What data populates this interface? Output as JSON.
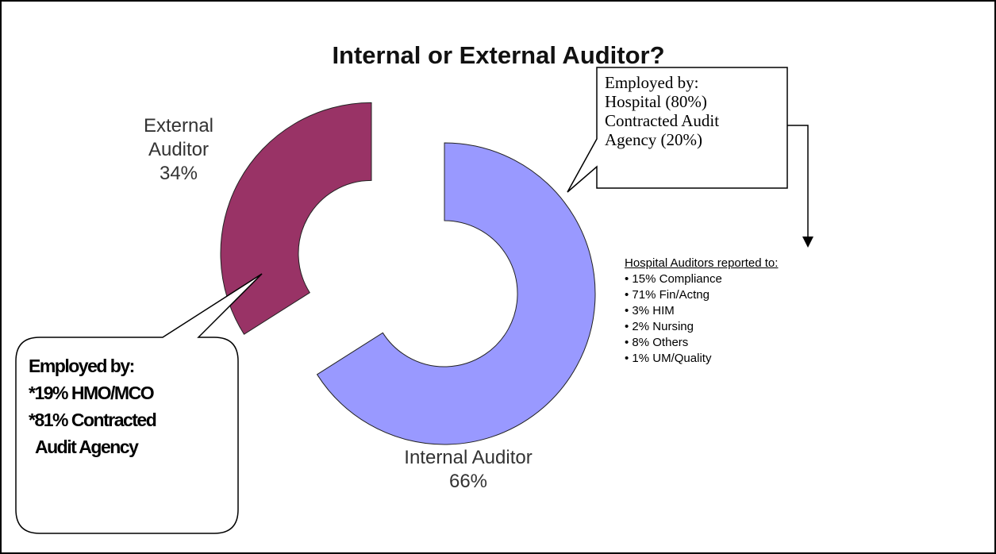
{
  "chart_data": {
    "type": "pie",
    "donut": true,
    "title": "Internal or External Auditor?",
    "categories": [
      "Internal Auditor",
      "External Auditor"
    ],
    "values": [
      66,
      34
    ],
    "value_labels": [
      "66%",
      "34%"
    ],
    "colors": [
      "#9999ff",
      "#993366"
    ],
    "annotations": [
      {
        "lines": [
          "Employed by:",
          "Hospital (80%)",
          "Contracted Audit",
          "Agency (20%)"
        ]
      },
      {
        "lines": [
          "Employed by:",
          "*19% HMO/MCO",
          "*81% Contracted",
          "Audit Agency"
        ]
      },
      {
        "heading": "Hospital Auditors reported to:",
        "items": [
          "15% Compliance",
          "71% Fin/Actng",
          "3% HIM",
          "2% Nursing",
          "8% Others",
          "1% UM/Quality"
        ]
      }
    ]
  }
}
